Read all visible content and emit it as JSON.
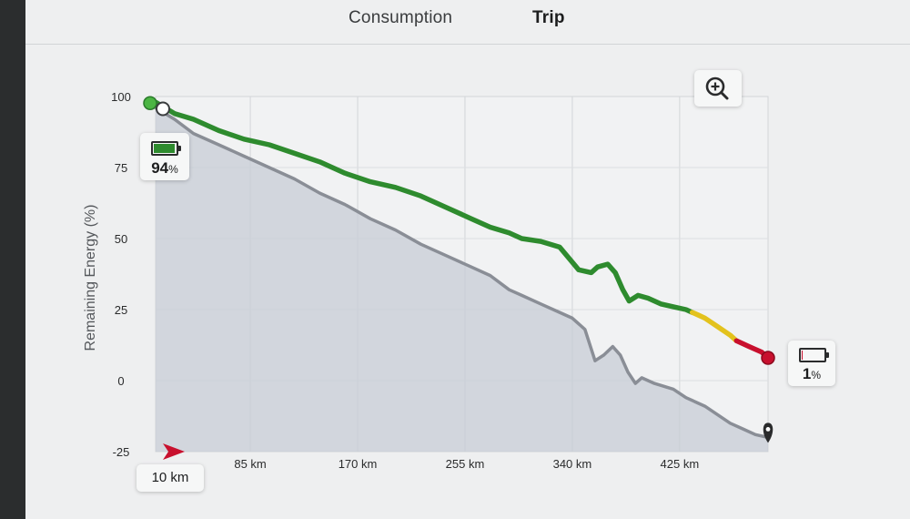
{
  "tabs": [
    {
      "label": "Consumption",
      "active": false
    },
    {
      "label": "Trip",
      "active": true
    }
  ],
  "badges": {
    "start_percent": "94",
    "end_percent": "1",
    "percent_unit": "%",
    "start_km": "10 km",
    "start_battery_level": 0.94,
    "end_battery_level": 0.01
  },
  "icons": {
    "zoom": "zoom-in-icon",
    "start_marker": "start-arrow-icon",
    "end_marker": "destination-pin-icon",
    "battery": "battery-icon"
  },
  "colors": {
    "good": "#2e8b2e",
    "warning": "#e3c21d",
    "critical": "#c8102e",
    "actual": "#8a8e96",
    "area_fill": "#c7ccd6",
    "start_dot": "#4bb543"
  },
  "chart_data": {
    "type": "line",
    "ylabel": "Remaining Energy (%)",
    "ylim": [
      -25,
      100
    ],
    "y_ticks": [
      "100",
      "75",
      "50",
      "25",
      "0",
      "-25"
    ],
    "xlim": [
      10,
      495
    ],
    "x_ticks": [
      "85 km",
      "170 km",
      "255 km",
      "340 km",
      "425 km"
    ],
    "x_tick_values": [
      85,
      170,
      255,
      340,
      425
    ],
    "grid": true,
    "series": [
      {
        "role": "projected",
        "points": [
          [
            10,
            98
          ],
          [
            25,
            94
          ],
          [
            40,
            92
          ],
          [
            60,
            88
          ],
          [
            80,
            85
          ],
          [
            100,
            83
          ],
          [
            120,
            80
          ],
          [
            140,
            77
          ],
          [
            160,
            73
          ],
          [
            180,
            70
          ],
          [
            200,
            68
          ],
          [
            220,
            65
          ],
          [
            240,
            61
          ],
          [
            260,
            57
          ],
          [
            275,
            54
          ],
          [
            290,
            52
          ],
          [
            300,
            50
          ],
          [
            315,
            49
          ],
          [
            330,
            47
          ],
          [
            345,
            39
          ],
          [
            355,
            38
          ],
          [
            360,
            40
          ],
          [
            368,
            41
          ],
          [
            374,
            38
          ],
          [
            380,
            32
          ],
          [
            385,
            28
          ],
          [
            392,
            30
          ],
          [
            400,
            29
          ],
          [
            410,
            27
          ],
          [
            420,
            26
          ],
          [
            430,
            25
          ],
          [
            440,
            23
          ],
          [
            445,
            22
          ],
          [
            455,
            19
          ],
          [
            465,
            16
          ],
          [
            470,
            14
          ],
          [
            480,
            12
          ],
          [
            490,
            10
          ],
          [
            495,
            8
          ]
        ],
        "segments": [
          {
            "status": "good",
            "x_range": [
              10,
              435
            ]
          },
          {
            "status": "warning",
            "x_range": [
              435,
              470
            ]
          },
          {
            "status": "critical",
            "x_range": [
              470,
              495
            ]
          }
        ]
      },
      {
        "role": "actual",
        "points": [
          [
            10,
            96
          ],
          [
            25,
            92
          ],
          [
            40,
            87
          ],
          [
            60,
            83
          ],
          [
            80,
            79
          ],
          [
            100,
            75
          ],
          [
            120,
            71
          ],
          [
            140,
            66
          ],
          [
            160,
            62
          ],
          [
            180,
            57
          ],
          [
            200,
            53
          ],
          [
            220,
            48
          ],
          [
            240,
            44
          ],
          [
            260,
            40
          ],
          [
            275,
            37
          ],
          [
            290,
            32
          ],
          [
            300,
            30
          ],
          [
            315,
            27
          ],
          [
            330,
            24
          ],
          [
            340,
            22
          ],
          [
            350,
            18
          ],
          [
            358,
            7
          ],
          [
            365,
            9
          ],
          [
            372,
            12
          ],
          [
            378,
            9
          ],
          [
            384,
            3
          ],
          [
            390,
            -1
          ],
          [
            395,
            1
          ],
          [
            405,
            -1
          ],
          [
            420,
            -3
          ],
          [
            430,
            -6
          ],
          [
            445,
            -9
          ],
          [
            455,
            -12
          ],
          [
            465,
            -15
          ],
          [
            475,
            -17
          ],
          [
            485,
            -19
          ],
          [
            495,
            -20
          ]
        ]
      }
    ]
  }
}
